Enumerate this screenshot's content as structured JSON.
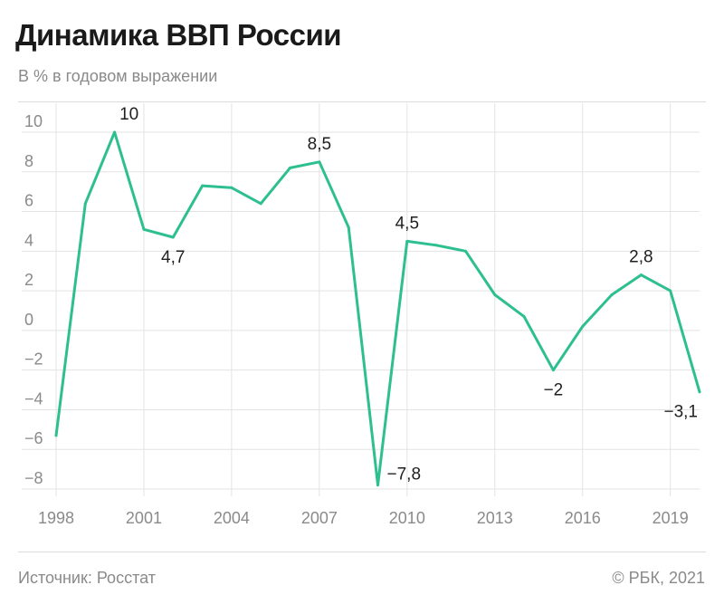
{
  "header": {
    "title": "Динамика ВВП России",
    "subtitle": "В % в годовом выражении"
  },
  "footer": {
    "source": "Источник: Росстат",
    "copyright": "© РБК, 2021"
  },
  "colors": {
    "line": "#2ebf91",
    "grid": "#e3e3e3",
    "axis_text": "#8a8a8a",
    "label_text": "#1f1f1f"
  },
  "chart_data": {
    "type": "line",
    "title": "Динамика ВВП России",
    "subtitle": "В % в годовом выражении",
    "xlabel": "",
    "ylabel": "",
    "xlim": [
      1998,
      2020
    ],
    "ylim": [
      -8,
      10
    ],
    "grid": true,
    "x_ticks": [
      1998,
      2001,
      2004,
      2007,
      2010,
      2013,
      2016,
      2019
    ],
    "y_ticks": [
      -8,
      -6,
      -4,
      -2,
      0,
      2,
      4,
      6,
      8,
      10
    ],
    "y_tick_labels": [
      "−8",
      "−6",
      "−4",
      "−2",
      "0",
      "2",
      "4",
      "6",
      "8",
      "10"
    ],
    "series": [
      {
        "x": [
          1998,
          1999,
          2000,
          2001,
          2002,
          2003,
          2004,
          2005,
          2006,
          2007,
          2008,
          2009,
          2010,
          2011,
          2012,
          2013,
          2014,
          2015,
          2016,
          2017,
          2018,
          2019,
          2020
        ],
        "values": [
          -5.3,
          6.4,
          10,
          5.1,
          4.7,
          7.3,
          7.2,
          6.4,
          8.2,
          8.5,
          5.2,
          -7.8,
          4.5,
          4.3,
          4.0,
          1.8,
          0.7,
          -2,
          0.2,
          1.8,
          2.8,
          2.0,
          -3.1
        ]
      }
    ],
    "annotations": [
      {
        "x": 2000,
        "y": 10,
        "text": "10",
        "position": "above"
      },
      {
        "x": 2002,
        "y": 4.7,
        "text": "4,7",
        "position": "below"
      },
      {
        "x": 2007,
        "y": 8.5,
        "text": "8,5",
        "position": "above"
      },
      {
        "x": 2009,
        "y": -7.8,
        "text": "−7,8",
        "position": "right"
      },
      {
        "x": 2010,
        "y": 4.5,
        "text": "4,5",
        "position": "above"
      },
      {
        "x": 2015,
        "y": -2,
        "text": "−2",
        "position": "below"
      },
      {
        "x": 2018,
        "y": 2.8,
        "text": "2,8",
        "position": "above"
      },
      {
        "x": 2020,
        "y": -3.1,
        "text": "−3,1",
        "position": "below-left"
      }
    ]
  }
}
